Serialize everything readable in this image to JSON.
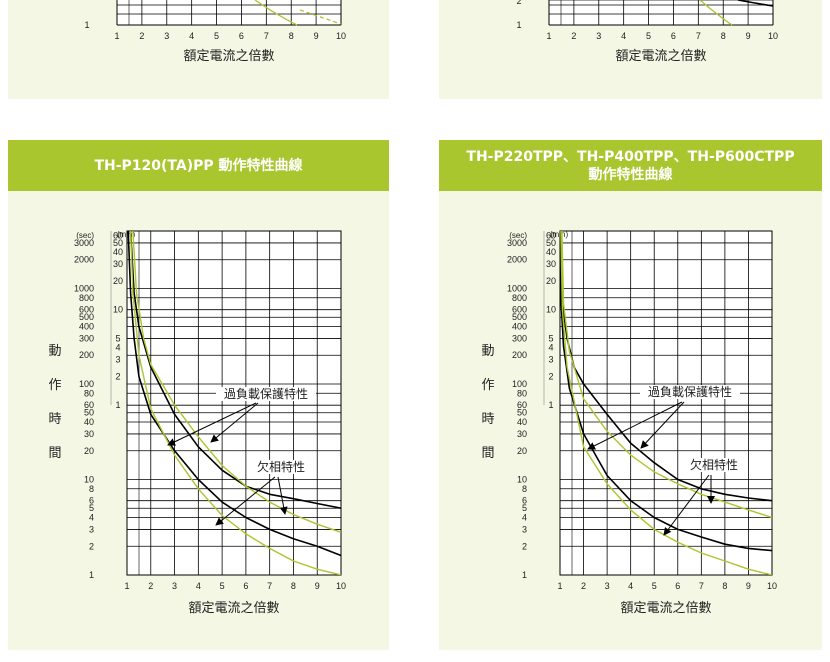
{
  "colors": {
    "header_bg": "#a9c62e",
    "panel_bg": "#f3f7e4",
    "overload_curve": "#000000",
    "phase_loss_curve": "#a9c62e"
  },
  "common": {
    "x_axis_label": "額定電流之倍數",
    "y_axis_label_chars": [
      "動",
      "作",
      "時",
      "間"
    ],
    "sec_unit": "(sec)",
    "min_unit": "(min)",
    "overload_label": "過負載保護特性",
    "phase_loss_label": "欠相特性",
    "x_ticks": [
      "1",
      "2",
      "3",
      "4",
      "5",
      "6",
      "7",
      "8",
      "9",
      "10"
    ],
    "sec_ticks": [
      "3000",
      "2000",
      "1000",
      "800",
      "600",
      "500",
      "400",
      "300",
      "200",
      "100",
      "80",
      "60",
      "50",
      "40",
      "30",
      "20",
      "10",
      "8",
      "6",
      "5",
      "4",
      "3",
      "2",
      "1"
    ],
    "min_ticks": [
      "60",
      "50",
      "40",
      "30",
      "20",
      "10",
      "5",
      "4",
      "3",
      "2",
      "1"
    ]
  },
  "top_left": {
    "x_ticks": [
      "1",
      "2",
      "3",
      "4",
      "5",
      "6",
      "7",
      "8",
      "9",
      "10"
    ],
    "y_tick": "1",
    "x_axis_label": "額定電流之倍數"
  },
  "top_right": {
    "x_ticks": [
      "1",
      "2",
      "3",
      "4",
      "5",
      "6",
      "7",
      "8",
      "9",
      "10"
    ],
    "y_ticks": [
      "2",
      "1"
    ],
    "x_axis_label": "額定電流之倍數"
  },
  "chart_data": [
    {
      "type": "line",
      "title": "TH-P120(TA)PP 動作特性曲線",
      "xlabel": "額定電流之倍數",
      "ylabel": "動作時間",
      "yscale": "log",
      "xlim": [
        1,
        10
      ],
      "ylim": [
        1,
        4000
      ],
      "series": [
        {
          "group": "overload",
          "values": [
            [
              1.15,
              4000
            ],
            [
              1.3,
              900
            ],
            [
              1.5,
              400
            ],
            [
              2,
              150
            ],
            [
              3,
              48
            ],
            [
              4,
              22
            ],
            [
              5,
              12.5
            ],
            [
              6,
              8.5
            ],
            [
              7,
              7
            ],
            [
              8,
              6.3
            ],
            [
              9,
              5.6
            ],
            [
              10,
              5
            ]
          ]
        },
        {
          "group": "overload",
          "values": [
            [
              1.05,
              4000
            ],
            [
              1.15,
              900
            ],
            [
              1.3,
              300
            ],
            [
              1.5,
              120
            ],
            [
              2,
              48
            ],
            [
              3,
              20
            ],
            [
              4,
              10
            ],
            [
              5,
              5.8
            ],
            [
              6,
              4
            ],
            [
              7,
              3
            ],
            [
              8,
              2.4
            ],
            [
              9,
              2
            ],
            [
              10,
              1.6
            ]
          ]
        },
        {
          "group": "phase_loss",
          "values": [
            [
              1.25,
              4000
            ],
            [
              1.4,
              900
            ],
            [
              1.7,
              300
            ],
            [
              2,
              160
            ],
            [
              3,
              60
            ],
            [
              4,
              28
            ],
            [
              5,
              14
            ],
            [
              6,
              8.5
            ],
            [
              7,
              5.8
            ],
            [
              8,
              4.3
            ],
            [
              9,
              3.4
            ],
            [
              10,
              2.8
            ]
          ]
        },
        {
          "group": "phase_loss",
          "values": [
            [
              1.15,
              4000
            ],
            [
              1.25,
              900
            ],
            [
              1.5,
              200
            ],
            [
              2,
              55
            ],
            [
              3,
              18
            ],
            [
              4,
              8
            ],
            [
              5,
              4.2
            ],
            [
              6,
              2.7
            ],
            [
              7,
              1.9
            ],
            [
              8,
              1.4
            ],
            [
              9,
              1.15
            ],
            [
              10,
              1
            ]
          ]
        }
      ]
    },
    {
      "type": "line",
      "title": "TH-P220TPP、TH-P400TPP、TH-P600CTPP 動作特性曲線",
      "xlabel": "額定電流之倍數",
      "ylabel": "動作時間",
      "yscale": "log",
      "xlim": [
        1,
        10
      ],
      "ylim": [
        1,
        4000
      ],
      "series": [
        {
          "group": "overload",
          "values": [
            [
              1.05,
              4000
            ],
            [
              1.1,
              700
            ],
            [
              1.3,
              300
            ],
            [
              1.6,
              150
            ],
            [
              2,
              100
            ],
            [
              3,
              48
            ],
            [
              4,
              24
            ],
            [
              5,
              15
            ],
            [
              6,
              10
            ],
            [
              7,
              8
            ],
            [
              8,
              7
            ],
            [
              9,
              6.4
            ],
            [
              10,
              6
            ]
          ]
        },
        {
          "group": "overload",
          "values": [
            [
              1.02,
              4000
            ],
            [
              1.05,
              700
            ],
            [
              1.15,
              250
            ],
            [
              1.4,
              90
            ],
            [
              2,
              30
            ],
            [
              3,
              11
            ],
            [
              4,
              6
            ],
            [
              5,
              4
            ],
            [
              6,
              3
            ],
            [
              7,
              2.5
            ],
            [
              8,
              2.1
            ],
            [
              9,
              1.9
            ],
            [
              10,
              1.8
            ]
          ]
        },
        {
          "group": "phase_loss",
          "values": [
            [
              1.08,
              4000
            ],
            [
              1.15,
              700
            ],
            [
              1.4,
              220
            ],
            [
              2,
              70
            ],
            [
              3,
              32
            ],
            [
              4,
              18
            ],
            [
              5,
              12
            ],
            [
              6,
              9
            ],
            [
              7,
              7
            ],
            [
              8,
              5.8
            ],
            [
              9,
              4.8
            ],
            [
              10,
              4
            ]
          ]
        },
        {
          "group": "phase_loss",
          "values": [
            [
              1.04,
              4000
            ],
            [
              1.1,
              600
            ],
            [
              1.3,
              150
            ],
            [
              2,
              22
            ],
            [
              3,
              9
            ],
            [
              4,
              4.8
            ],
            [
              5,
              3
            ],
            [
              6,
              2.2
            ],
            [
              7,
              1.7
            ],
            [
              8,
              1.4
            ],
            [
              9,
              1.15
            ],
            [
              10,
              1
            ]
          ]
        }
      ]
    }
  ],
  "header_lines": [
    [
      "TH-P120(TA)PP 動作特性曲線"
    ],
    [
      "TH-P220TPP、TH-P400TPP、TH-P600CTPP",
      "動作特性曲線"
    ]
  ]
}
